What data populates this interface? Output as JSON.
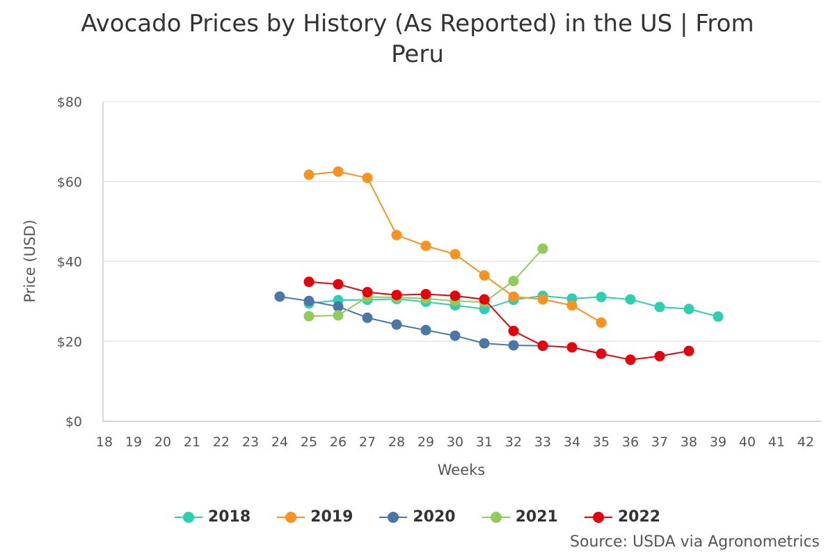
{
  "chart_data": {
    "type": "line",
    "title": "Avocado Prices by History (As Reported) in the US | From Peru",
    "xlabel": "Weeks",
    "ylabel": "Price (USD)",
    "x_ticks": [
      "18",
      "19",
      "20",
      "21",
      "22",
      "23",
      "24",
      "25",
      "26",
      "27",
      "28",
      "29",
      "30",
      "31",
      "32",
      "33",
      "34",
      "35",
      "36",
      "37",
      "38",
      "39",
      "40",
      "41",
      "42"
    ],
    "xlim": [
      18,
      42
    ],
    "ylim": [
      0,
      80
    ],
    "y_ticks": [
      "$0",
      "$20",
      "$40",
      "$60",
      "$80"
    ],
    "y_tick_values": [
      0,
      20,
      40,
      60,
      80
    ],
    "grid": "horizontal",
    "legend_position": "bottom",
    "series": [
      {
        "name": "2018",
        "color": "#2ccfb1",
        "x": [
          25,
          26,
          27,
          28,
          29,
          30,
          31,
          32,
          33,
          34,
          35,
          36,
          37,
          38,
          39
        ],
        "values": [
          29.5,
          30.3,
          30.4,
          30.6,
          29.9,
          29.0,
          28.1,
          30.4,
          31.4,
          30.7,
          31.1,
          30.5,
          28.6,
          28.1,
          26.2
        ]
      },
      {
        "name": "2019",
        "color": "#f7931e",
        "x": [
          25,
          26,
          27,
          28,
          29,
          30,
          31,
          32,
          33,
          34,
          35
        ],
        "values": [
          61.7,
          62.5,
          60.9,
          46.6,
          43.9,
          41.8,
          36.5,
          31.2,
          30.5,
          29.0,
          24.7
        ]
      },
      {
        "name": "2020",
        "color": "#4a76a8",
        "x": [
          24,
          25,
          26,
          27,
          28,
          29,
          30,
          31,
          32,
          33
        ],
        "values": [
          31.2,
          30.1,
          28.7,
          25.9,
          24.2,
          22.8,
          21.4,
          19.5,
          19.0,
          18.9
        ]
      },
      {
        "name": "2021",
        "color": "#8fcc5a",
        "x": [
          25,
          26,
          27,
          28,
          29,
          30,
          31,
          32,
          33
        ],
        "values": [
          26.3,
          26.5,
          31.1,
          31.0,
          30.7,
          30.1,
          29.8,
          35.1,
          43.2
        ]
      },
      {
        "name": "2022",
        "color": "#e8000b",
        "x": [
          25,
          26,
          27,
          28,
          29,
          30,
          31,
          32,
          33,
          34,
          35,
          36,
          37,
          38
        ],
        "values": [
          34.9,
          34.3,
          32.3,
          31.6,
          31.8,
          31.4,
          30.5,
          22.6,
          18.9,
          18.5,
          16.9,
          15.4,
          16.3,
          17.6
        ]
      }
    ]
  },
  "source_text": "Source: USDA via Agronometrics"
}
